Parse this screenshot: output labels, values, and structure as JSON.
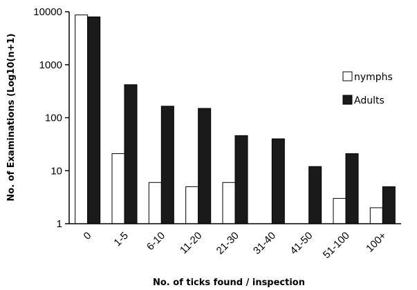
{
  "chart_data": {
    "type": "bar",
    "xlabel": "No. of ticks found / inspection",
    "ylabel": "No. of Examinations  (Log10(n+1)",
    "yscale": "log",
    "ylim": [
      1,
      10000
    ],
    "yticks": [
      "1",
      "10",
      "100",
      "1000",
      "10000"
    ],
    "categories": [
      "0",
      "1-5",
      "6-10",
      "11-20",
      "21-30",
      "31-40",
      "41-50",
      "51-100",
      "100+"
    ],
    "series": [
      {
        "name": "nymphs",
        "color": "#ffffff",
        "values": [
          8700,
          21,
          6,
          5,
          6,
          1,
          1,
          3,
          2
        ]
      },
      {
        "name": "Adults",
        "color": "#1a1a1a",
        "values": [
          8000,
          420,
          165,
          150,
          46,
          40,
          12,
          21,
          5
        ]
      }
    ],
    "legend_position": "right",
    "grid": false
  }
}
